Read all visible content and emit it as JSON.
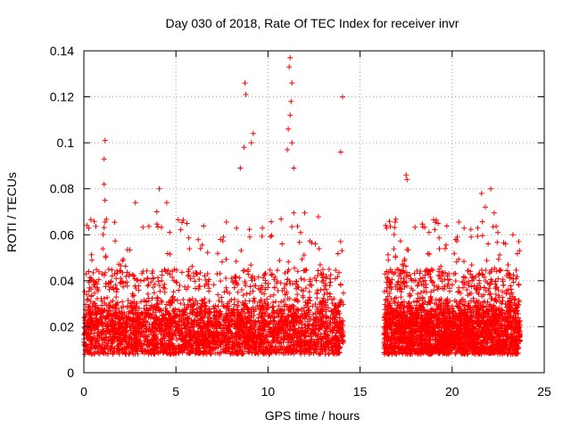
{
  "chart_data": {
    "type": "scatter",
    "title": "Day 030 of 2018, Rate Of TEC Index for receiver invr",
    "xlabel": "GPS time / hours",
    "ylabel": "ROTI / TECUs",
    "xlim": [
      0,
      25
    ],
    "ylim": [
      0,
      0.14
    ],
    "xticks": [
      "0",
      "5",
      "10",
      "15",
      "20",
      "25"
    ],
    "yticks": [
      "0",
      "0.02",
      "0.04",
      "0.06",
      "0.08",
      "0.1",
      "0.12",
      "0.14"
    ],
    "grid": true,
    "marker": "+",
    "color": "#ff0000",
    "series": [
      {
        "name": "ROTI",
        "segments": [
          {
            "x_start": 0.0,
            "x_end": 14.1
          },
          {
            "x_start": 16.3,
            "x_end": 23.7
          }
        ],
        "notable_points": [
          {
            "x": 1.15,
            "y": 0.101
          },
          {
            "x": 1.1,
            "y": 0.093
          },
          {
            "x": 1.1,
            "y": 0.082
          },
          {
            "x": 1.15,
            "y": 0.075
          },
          {
            "x": 2.8,
            "y": 0.074
          },
          {
            "x": 4.1,
            "y": 0.08
          },
          {
            "x": 4.5,
            "y": 0.074
          },
          {
            "x": 8.75,
            "y": 0.126
          },
          {
            "x": 8.8,
            "y": 0.121
          },
          {
            "x": 8.7,
            "y": 0.098
          },
          {
            "x": 9.2,
            "y": 0.104
          },
          {
            "x": 9.1,
            "y": 0.1
          },
          {
            "x": 8.5,
            "y": 0.089
          },
          {
            "x": 11.2,
            "y": 0.137
          },
          {
            "x": 11.15,
            "y": 0.133
          },
          {
            "x": 11.3,
            "y": 0.126
          },
          {
            "x": 11.25,
            "y": 0.118
          },
          {
            "x": 11.2,
            "y": 0.112
          },
          {
            "x": 11.1,
            "y": 0.106
          },
          {
            "x": 11.3,
            "y": 0.1
          },
          {
            "x": 11.05,
            "y": 0.097
          },
          {
            "x": 11.4,
            "y": 0.089
          },
          {
            "x": 14.05,
            "y": 0.12
          },
          {
            "x": 13.95,
            "y": 0.096
          },
          {
            "x": 17.5,
            "y": 0.086
          },
          {
            "x": 17.55,
            "y": 0.084
          },
          {
            "x": 21.6,
            "y": 0.078
          },
          {
            "x": 22.1,
            "y": 0.08
          },
          {
            "x": 21.8,
            "y": 0.072
          },
          {
            "x": 23.3,
            "y": 0.06
          }
        ]
      }
    ]
  }
}
